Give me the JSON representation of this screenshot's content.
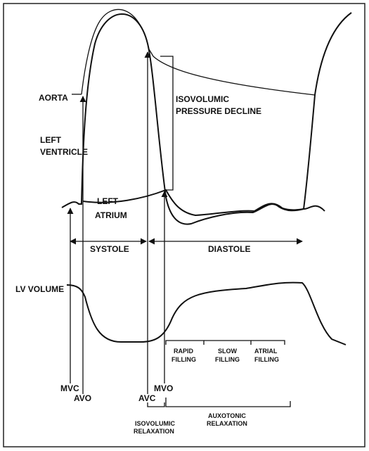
{
  "labels": {
    "aorta": "AORTA",
    "left_ventricle": [
      "LEFT",
      "VENTRICLE"
    ],
    "left_atrium": [
      "LEFT",
      "ATRIUM"
    ],
    "isovolumic_pressure_decline": [
      "ISOVOLUMIC",
      "PRESSURE DECLINE"
    ],
    "systole": "SYSTOLE",
    "diastole": "DIASTOLE",
    "lv_volume": "LV VOLUME",
    "rapid_filling": [
      "RAPID",
      "FILLING"
    ],
    "slow_filling": [
      "SLOW",
      "FILLING"
    ],
    "atrial_filling": [
      "ATRIAL",
      "FILLING"
    ],
    "mvc": "MVC",
    "avo": "AVO",
    "avc": "AVC",
    "mvo": "MVO",
    "isovolumic_relaxation": [
      "ISOVOLUMIC",
      "RELAXATION"
    ],
    "auxotonic_relaxation": [
      "AUXOTONIC",
      "RELAXATION"
    ]
  }
}
